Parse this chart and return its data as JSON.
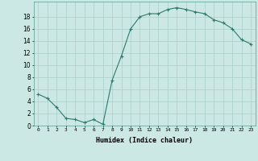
{
  "x": [
    0,
    1,
    2,
    3,
    4,
    5,
    6,
    7,
    8,
    9,
    10,
    11,
    12,
    13,
    14,
    15,
    16,
    17,
    18,
    19,
    20,
    21,
    22,
    23
  ],
  "y": [
    5.2,
    4.5,
    3.0,
    1.2,
    1.0,
    0.5,
    1.0,
    0.2,
    7.5,
    11.5,
    16.0,
    18.0,
    18.5,
    18.5,
    19.2,
    19.5,
    19.2,
    18.8,
    18.5,
    17.5,
    17.0,
    16.0,
    14.2,
    13.5
  ],
  "xlabel": "Humidex (Indice chaleur)",
  "ylim": [
    0,
    20
  ],
  "xlim": [
    -0.5,
    23.5
  ],
  "yticks": [
    0,
    2,
    4,
    6,
    8,
    10,
    12,
    14,
    16,
    18
  ],
  "xticks": [
    0,
    1,
    2,
    3,
    4,
    5,
    6,
    7,
    8,
    9,
    10,
    11,
    12,
    13,
    14,
    15,
    16,
    17,
    18,
    19,
    20,
    21,
    22,
    23
  ],
  "line_color": "#2d7a6e",
  "bg_color": "#cce8e4",
  "grid_color": "#aacfcb",
  "marker": "+"
}
